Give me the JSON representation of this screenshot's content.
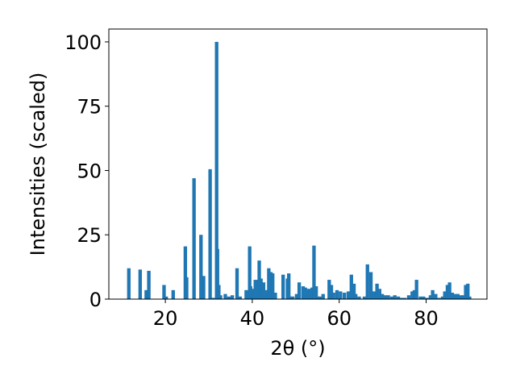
{
  "chart_data": {
    "type": "bar",
    "xlabel": "2θ (°)",
    "ylabel": "Intensities (scaled)",
    "xlim": [
      7,
      94
    ],
    "ylim": [
      0,
      105
    ],
    "xticks": [
      20,
      40,
      60,
      80
    ],
    "yticks": [
      0,
      25,
      50,
      75,
      100
    ],
    "bar_color": "#1f77b4",
    "bar_width": 0.8,
    "series": [
      {
        "x": [
          11.6,
          14.2,
          15.6,
          16.2,
          19.7,
          20.2,
          21.8,
          24.6,
          24.9,
          26.6,
          28.2,
          28.8,
          30.3,
          31.0,
          31.8,
          32.0,
          32.3,
          32.7,
          33.8,
          34.6,
          35.4,
          36.5,
          37.2,
          38.6,
          39.4,
          39.6,
          40.2,
          40.7,
          41.2,
          41.6,
          42.0,
          42.6,
          43.1,
          43.8,
          44.3,
          44.7,
          45.3,
          47.1,
          48.1,
          48.4,
          49.0,
          49.3,
          50.2,
          50.8,
          51.7,
          52.2,
          52.7,
          53.3,
          53.8,
          54.2,
          54.7,
          55.2,
          55.7,
          56.3,
          57.7,
          58.2,
          58.7,
          59.5,
          60.3,
          61.2,
          62.1,
          62.8,
          63.4,
          63.8,
          64.6,
          65.8,
          66.5,
          67.3,
          68.0,
          68.7,
          69.3,
          69.9,
          70.6,
          71.3,
          72.1,
          72.8,
          73.6,
          74.3,
          75.1,
          76.0,
          76.8,
          77.3,
          77.8,
          78.7,
          79.4,
          80.2,
          81.0,
          81.5,
          82.2,
          83.0,
          83.8,
          84.3,
          84.9,
          85.4,
          86.0,
          86.7,
          87.3,
          88.0,
          88.6,
          89.1,
          89.6,
          90.0
        ],
        "y": [
          12,
          11.5,
          3.5,
          11,
          5.5,
          1,
          3.5,
          20.5,
          8.5,
          47,
          25,
          9,
          50.5,
          0.5,
          100,
          19.5,
          5.5,
          1.5,
          2,
          1,
          1.5,
          12,
          1,
          3.5,
          20.5,
          5,
          4,
          7.5,
          7.5,
          15,
          8,
          6.5,
          3.5,
          12,
          10.5,
          10,
          2.5,
          9.5,
          8,
          10,
          1,
          1,
          2,
          6.5,
          5,
          4.5,
          4,
          4,
          4.5,
          20.8,
          5,
          1,
          1,
          2,
          7.5,
          5.5,
          2.5,
          3.5,
          3,
          2.5,
          3,
          9.5,
          6,
          2,
          1,
          1,
          13.5,
          10.5,
          3,
          6,
          4,
          2,
          1.5,
          1.5,
          1,
          1.5,
          1,
          0.5,
          0.5,
          1.5,
          3,
          3.5,
          7.5,
          1,
          1,
          0.5,
          1.5,
          3.5,
          2,
          0.5,
          1,
          3,
          5.5,
          6.5,
          2.5,
          2,
          2,
          1.5,
          1.5,
          5.5,
          6,
          1
        ]
      }
    ]
  }
}
